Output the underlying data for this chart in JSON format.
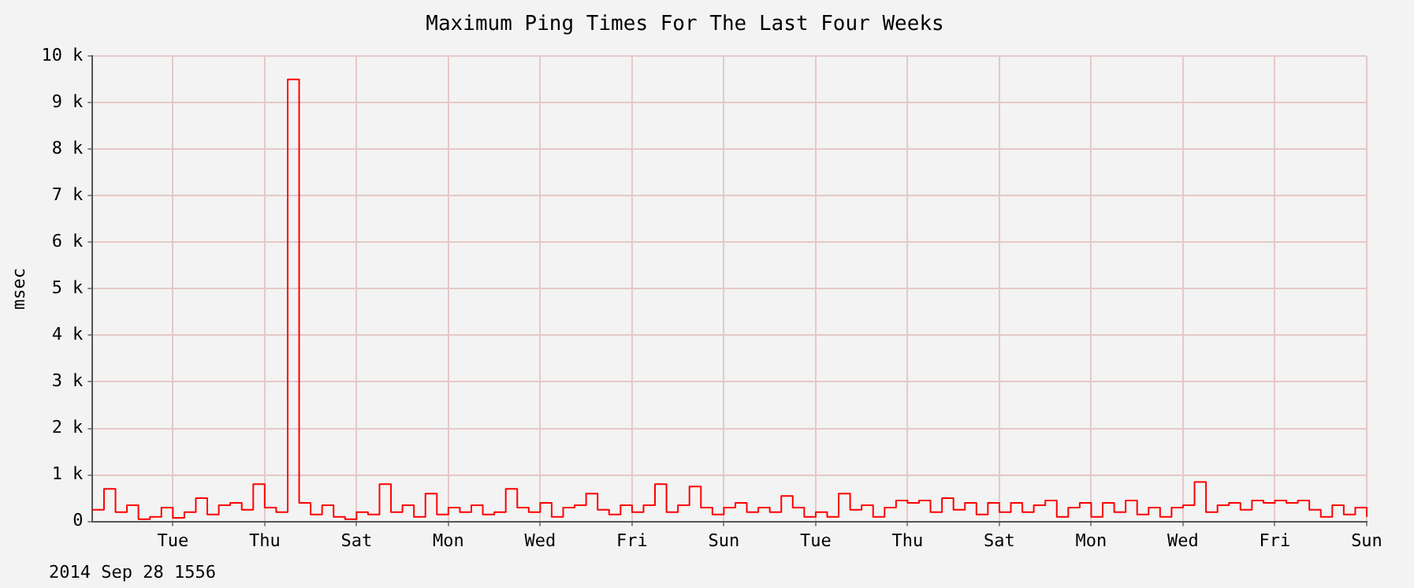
{
  "chart_data": {
    "type": "step",
    "title": "Maximum Ping Times For The Last Four Weeks",
    "ylabel": "msec",
    "annotations": [
      "2014 Sep 28 1556"
    ],
    "categories": [
      null,
      null,
      null,
      null,
      null,
      null,
      null,
      "Tue",
      null,
      null,
      null,
      null,
      null,
      null,
      null,
      "Thu",
      null,
      null,
      null,
      null,
      null,
      null,
      null,
      "Sat",
      null,
      null,
      null,
      null,
      null,
      null,
      null,
      "Mon",
      null,
      null,
      null,
      null,
      null,
      null,
      null,
      "Wed",
      null,
      null,
      null,
      null,
      null,
      null,
      null,
      "Fri",
      null,
      null,
      null,
      null,
      null,
      null,
      null,
      "Sun",
      null,
      null,
      null,
      null,
      null,
      null,
      null,
      "Tue",
      null,
      null,
      null,
      null,
      null,
      null,
      null,
      "Thu",
      null,
      null,
      null,
      null,
      null,
      null,
      null,
      "Sat",
      null,
      null,
      null,
      null,
      null,
      null,
      null,
      "Mon",
      null,
      null,
      null,
      null,
      null,
      null,
      null,
      "Wed",
      null,
      null,
      null,
      null,
      null,
      null,
      null,
      "Fri",
      null,
      null,
      null,
      null,
      null,
      null,
      null,
      "Sun"
    ],
    "series": [
      {
        "color": "#ff0000",
        "values": [
          250,
          700,
          200,
          350,
          50,
          100,
          300,
          80,
          200,
          500,
          150,
          350,
          400,
          250,
          800,
          300,
          200,
          9500,
          400,
          150,
          350,
          100,
          50,
          200,
          150,
          800,
          200,
          350,
          100,
          600,
          150,
          300,
          200,
          350,
          150,
          200,
          700,
          300,
          200,
          400,
          100,
          300,
          350,
          600,
          250,
          150,
          350,
          200,
          350,
          800,
          200,
          350,
          750,
          300,
          150,
          300,
          400,
          200,
          300,
          200,
          550,
          300,
          100,
          200,
          100,
          600,
          250,
          350,
          100,
          300,
          450,
          400,
          450,
          200,
          500,
          250,
          400,
          150,
          400,
          200,
          400,
          200,
          350,
          450,
          100,
          300,
          400,
          100,
          400,
          200,
          450,
          150,
          300,
          100,
          300,
          350,
          850,
          200,
          350,
          400,
          250,
          450,
          400,
          450,
          400,
          450,
          250,
          100,
          350,
          150,
          300,
          100
        ]
      }
    ],
    "ylim": [
      0,
      10000
    ],
    "yticks": [
      0,
      {
        "value": 1000,
        "label": "1 k"
      },
      {
        "value": 2000,
        "label": "2 k"
      },
      {
        "value": 3000,
        "label": "3 k"
      },
      {
        "value": 4000,
        "label": "4 k"
      },
      {
        "value": 5000,
        "label": "5 k"
      },
      {
        "value": 6000,
        "label": "6 k"
      },
      {
        "value": 7000,
        "label": "7 k"
      },
      {
        "value": 8000,
        "label": "8 k"
      },
      {
        "value": 9000,
        "label": "9 k"
      },
      {
        "value": 10000,
        "label": "10 k"
      }
    ],
    "grid": true,
    "legend": false,
    "marker": "none",
    "line_style": "solid"
  }
}
